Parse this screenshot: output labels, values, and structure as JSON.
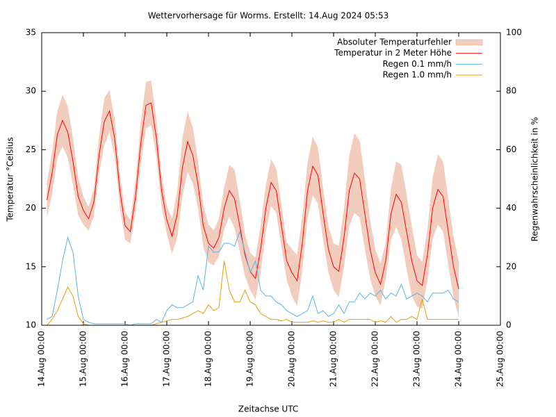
{
  "chart_data": {
    "type": "line",
    "title": "Wettervorhersage für Worms. Erstellt: 14.Aug 2024 05:53",
    "xlabel": "Zeitachse UTC",
    "ylabel": "Temperatur °Celsius",
    "y2label": "Regenwahrscheinlichkeit in %",
    "legend": "top-right",
    "x": [
      "14.Aug 03:00",
      "14.Aug 06:00",
      "14.Aug 09:00",
      "14.Aug 12:00",
      "14.Aug 15:00",
      "14.Aug 18:00",
      "14.Aug 21:00",
      "15.Aug 00:00",
      "15.Aug 03:00",
      "15.Aug 06:00",
      "15.Aug 09:00",
      "15.Aug 12:00",
      "15.Aug 15:00",
      "15.Aug 18:00",
      "15.Aug 21:00",
      "16.Aug 00:00",
      "16.Aug 03:00",
      "16.Aug 06:00",
      "16.Aug 09:00",
      "16.Aug 12:00",
      "16.Aug 15:00",
      "16.Aug 18:00",
      "16.Aug 21:00",
      "17.Aug 00:00",
      "17.Aug 03:00",
      "17.Aug 06:00",
      "17.Aug 09:00",
      "17.Aug 12:00",
      "17.Aug 15:00",
      "17.Aug 18:00",
      "17.Aug 21:00",
      "18.Aug 00:00",
      "18.Aug 03:00",
      "18.Aug 06:00",
      "18.Aug 09:00",
      "18.Aug 12:00",
      "18.Aug 15:00",
      "18.Aug 18:00",
      "18.Aug 21:00",
      "19.Aug 00:00",
      "19.Aug 03:00",
      "19.Aug 06:00",
      "19.Aug 09:00",
      "19.Aug 12:00",
      "19.Aug 15:00",
      "19.Aug 18:00",
      "19.Aug 21:00",
      "20.Aug 00:00",
      "20.Aug 03:00",
      "20.Aug 06:00",
      "20.Aug 09:00",
      "20.Aug 12:00",
      "20.Aug 15:00",
      "20.Aug 18:00",
      "20.Aug 21:00",
      "21.Aug 00:00",
      "21.Aug 03:00",
      "21.Aug 06:00",
      "21.Aug 09:00",
      "21.Aug 12:00",
      "21.Aug 15:00",
      "21.Aug 18:00",
      "21.Aug 21:00",
      "22.Aug 00:00",
      "22.Aug 03:00",
      "22.Aug 06:00",
      "22.Aug 09:00",
      "22.Aug 12:00",
      "22.Aug 15:00",
      "22.Aug 18:00",
      "22.Aug 21:00",
      "23.Aug 00:00",
      "23.Aug 03:00",
      "23.Aug 06:00",
      "23.Aug 09:00",
      "23.Aug 12:00",
      "23.Aug 15:00",
      "23.Aug 18:00",
      "23.Aug 21:00",
      "24.Aug 00:00"
    ],
    "series": [
      {
        "name": "Absoluter Temperaturfehler",
        "color": "#f2cdbd",
        "error_of": 1,
        "values": [
          1.5,
          1.8,
          2.0,
          2.2,
          2.2,
          2.0,
          1.6,
          1.2,
          1.0,
          1.2,
          1.6,
          2.0,
          1.8,
          1.6,
          1.4,
          1.2,
          1.0,
          1.4,
          1.8,
          2.0,
          1.9,
          1.6,
          1.4,
          1.2,
          1.5,
          2.0,
          2.5,
          2.6,
          2.4,
          2.0,
          1.8,
          1.6,
          1.5,
          1.6,
          1.8,
          2.2,
          2.5,
          2.2,
          1.8,
          1.6,
          1.8,
          2.0,
          2.0,
          2.0,
          1.9,
          1.8,
          1.6,
          2.0,
          2.2,
          2.3,
          2.4,
          2.5,
          2.4,
          2.2,
          2.0,
          2.0,
          2.2,
          2.5,
          3.0,
          3.4,
          3.3,
          3.0,
          2.5,
          2.0,
          1.8,
          1.6,
          2.2,
          2.8,
          3.2,
          3.2,
          3.0,
          2.2,
          2.0,
          2.2,
          2.6,
          3.0,
          3.0,
          2.8,
          2.6,
          2.4
        ]
      },
      {
        "name": "Temperatur in 2 Meter Höhe",
        "color": "#ff0000",
        "values": [
          20.7,
          23.0,
          26.3,
          27.5,
          26.5,
          24.0,
          21.0,
          19.8,
          19.1,
          20.5,
          24.5,
          27.4,
          28.3,
          26.0,
          21.5,
          18.5,
          18.0,
          21.0,
          25.5,
          28.8,
          29.0,
          26.0,
          21.5,
          19.0,
          17.6,
          19.5,
          23.5,
          25.7,
          24.5,
          22.0,
          18.5,
          17.0,
          16.6,
          17.5,
          20.0,
          21.5,
          20.8,
          18.5,
          16.0,
          14.6,
          14.0,
          16.5,
          20.0,
          22.2,
          21.5,
          18.5,
          15.5,
          14.5,
          13.8,
          17.0,
          21.5,
          23.6,
          22.8,
          19.5,
          16.5,
          15.0,
          14.6,
          17.5,
          21.5,
          23.0,
          22.5,
          19.5,
          16.5,
          14.5,
          13.5,
          15.5,
          19.5,
          21.2,
          20.5,
          18.0,
          15.5,
          13.8,
          13.4,
          16.0,
          20.0,
          21.6,
          21.0,
          18.0,
          15.0,
          13.1
        ]
      },
      {
        "name": "Regen 0.1 mm/h",
        "color": "#56b4e9",
        "axis": "y2",
        "values": [
          2,
          3,
          12,
          22,
          30,
          25,
          10,
          2,
          1,
          0.5,
          0.5,
          0.5,
          0.5,
          0.5,
          0.5,
          0.5,
          0,
          0.5,
          0.5,
          0.5,
          0.5,
          2,
          1,
          5,
          7,
          6,
          6,
          7,
          8,
          17,
          12,
          27,
          25,
          25,
          28,
          28,
          27,
          32,
          25,
          18,
          22,
          12,
          10,
          10,
          8,
          7,
          5,
          4,
          3,
          4,
          5,
          10,
          4,
          5,
          3,
          4,
          7,
          4,
          8,
          8,
          11,
          9,
          11,
          10,
          12,
          9,
          11,
          10,
          14,
          9,
          10,
          11,
          10,
          8,
          11,
          11,
          11,
          12,
          9,
          8
        ]
      },
      {
        "name": "Regen 1.0 mm/h",
        "color": "#e69f00",
        "axis": "y2",
        "values": [
          0,
          2,
          5,
          9,
          13,
          10,
          3,
          0.5,
          0,
          0,
          0,
          0,
          0,
          0,
          0,
          0,
          0,
          0,
          0,
          0,
          0,
          0.5,
          1,
          1.5,
          2,
          2,
          2.5,
          3,
          4,
          5,
          4,
          7,
          5,
          6,
          22,
          12,
          8,
          8,
          12,
          8,
          7,
          4,
          3,
          2,
          2,
          1.5,
          2,
          1,
          1,
          1,
          1,
          1.5,
          1,
          1.5,
          1,
          1,
          2,
          1,
          2,
          2,
          2,
          2,
          2,
          1,
          1.5,
          1,
          3,
          1,
          2,
          2,
          3,
          2,
          9,
          2,
          2,
          2,
          2,
          2,
          2,
          2
        ]
      }
    ],
    "xlim": [
      "14.Aug 00:00",
      "25.Aug 00:00"
    ],
    "xticks": [
      "14.Aug 00:00",
      "15.Aug 00:00",
      "16.Aug 00:00",
      "17.Aug 00:00",
      "18.Aug 00:00",
      "19.Aug 00:00",
      "20.Aug 00:00",
      "21.Aug 00:00",
      "22.Aug 00:00",
      "23.Aug 00:00",
      "24.Aug 00:00",
      "25.Aug 00:00"
    ],
    "ylim": [
      10,
      35
    ],
    "yticks": [
      10,
      15,
      20,
      25,
      30,
      35
    ],
    "y2lim": [
      0,
      100
    ],
    "y2ticks": [
      0,
      20,
      40,
      60,
      80,
      100
    ]
  }
}
